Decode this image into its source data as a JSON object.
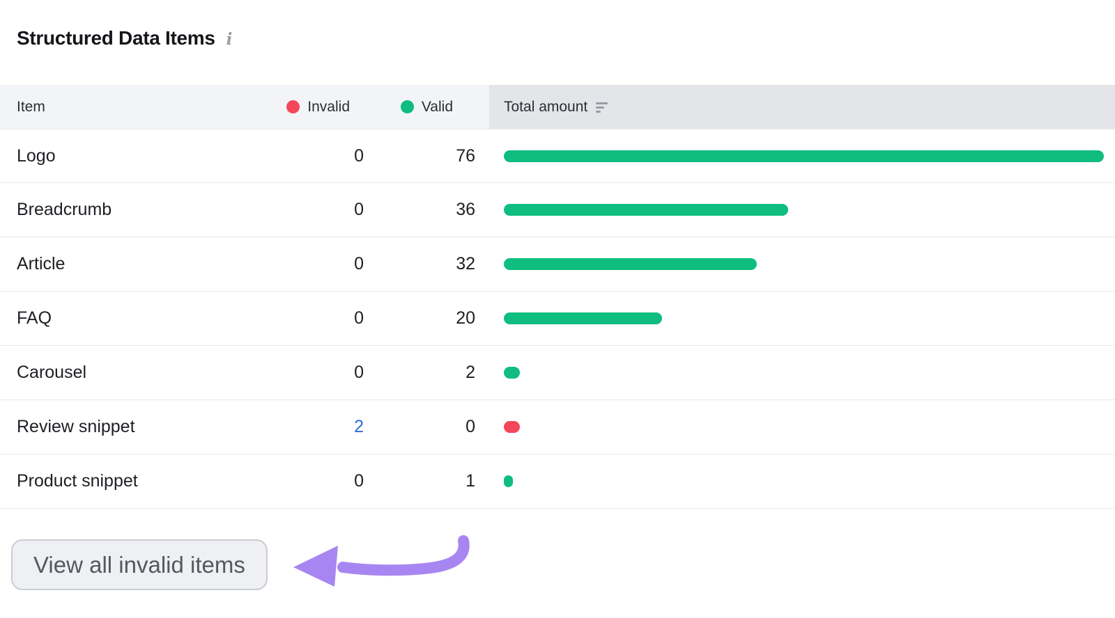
{
  "title": "Structured Data Items",
  "info_icon_glyph": "i",
  "colors": {
    "valid_green": "#0ebd7f",
    "invalid_red": "#f4465b",
    "link_blue": "#2b6cd9",
    "annotation_purple": "#a886f2",
    "header_bg": "#f3f4f7",
    "total_header_bg": "#e4e5e9"
  },
  "table": {
    "columns": {
      "item": "Item",
      "invalid": "Invalid",
      "valid": "Valid",
      "total": "Total amount"
    },
    "bar_max": 76,
    "rows": [
      {
        "item": "Logo",
        "invalid": 0,
        "valid": 76,
        "invalid_is_link": false,
        "bar_value": 76,
        "bar_color": "green"
      },
      {
        "item": "Breadcrumb",
        "invalid": 0,
        "valid": 36,
        "invalid_is_link": false,
        "bar_value": 36,
        "bar_color": "green"
      },
      {
        "item": "Article",
        "invalid": 0,
        "valid": 32,
        "invalid_is_link": false,
        "bar_value": 32,
        "bar_color": "green"
      },
      {
        "item": "FAQ",
        "invalid": 0,
        "valid": 20,
        "invalid_is_link": false,
        "bar_value": 20,
        "bar_color": "green"
      },
      {
        "item": "Carousel",
        "invalid": 0,
        "valid": 2,
        "invalid_is_link": false,
        "bar_value": 2,
        "bar_color": "green"
      },
      {
        "item": "Review snippet",
        "invalid": 2,
        "valid": 0,
        "invalid_is_link": true,
        "bar_value": 2,
        "bar_color": "red"
      },
      {
        "item": "Product snippet",
        "invalid": 0,
        "valid": 1,
        "invalid_is_link": false,
        "bar_value": 1,
        "bar_color": "green"
      }
    ]
  },
  "footer": {
    "button_label": "View all invalid items"
  }
}
